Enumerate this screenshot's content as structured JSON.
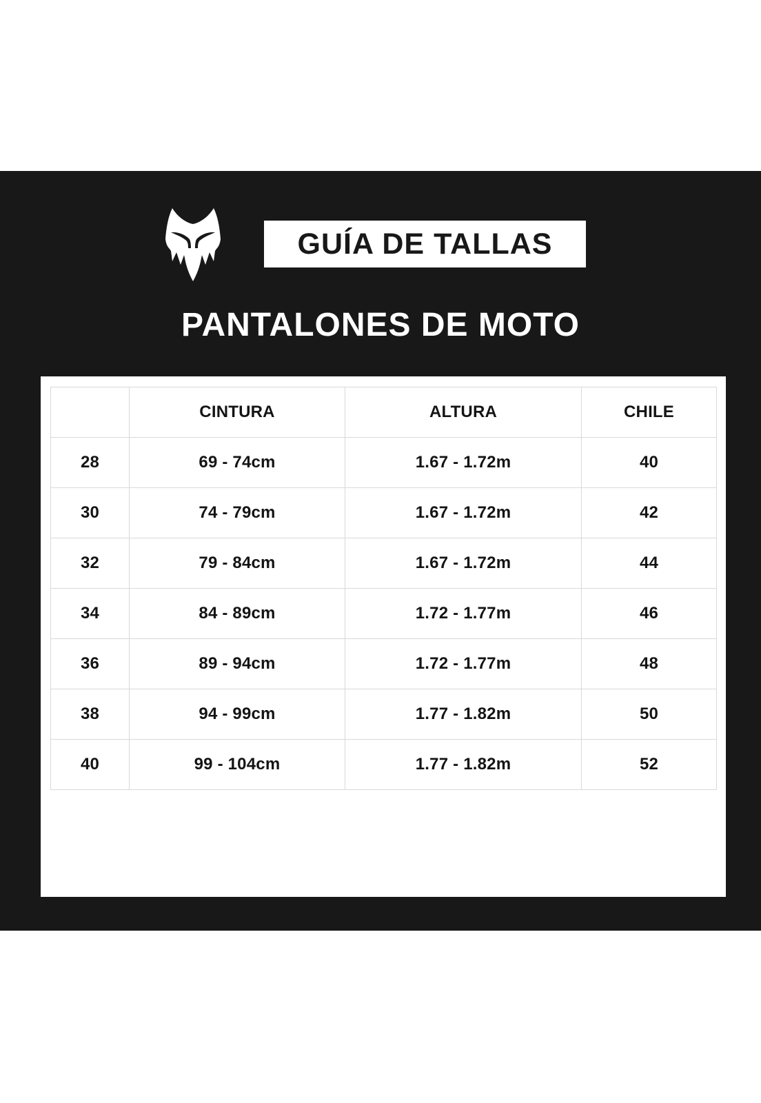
{
  "colors": {
    "page_background": "#ffffff",
    "panel_background": "#181818",
    "card_background": "#ffffff",
    "table_border": "#d9d9d9",
    "text_dark": "#141414",
    "text_light": "#ffffff"
  },
  "header": {
    "logo": "fox-racing-head",
    "badge": "GUÍA DE TALLAS",
    "subtitle": "PANTALONES DE MOTO"
  },
  "table": {
    "columns": [
      "",
      "CINTURA",
      "ALTURA",
      "CHILE"
    ],
    "rows": [
      [
        "28",
        "69 - 74cm",
        "1.67 - 1.72m",
        "40"
      ],
      [
        "30",
        "74 - 79cm",
        "1.67 - 1.72m",
        "42"
      ],
      [
        "32",
        "79 - 84cm",
        "1.67 - 1.72m",
        "44"
      ],
      [
        "34",
        "84 - 89cm",
        "1.72 - 1.77m",
        "46"
      ],
      [
        "36",
        "89 - 94cm",
        "1.72 - 1.77m",
        "48"
      ],
      [
        "38",
        "94 - 99cm",
        "1.77 - 1.82m",
        "50"
      ],
      [
        "40",
        "99 - 104cm",
        "1.77 - 1.82m",
        "52"
      ]
    ]
  }
}
